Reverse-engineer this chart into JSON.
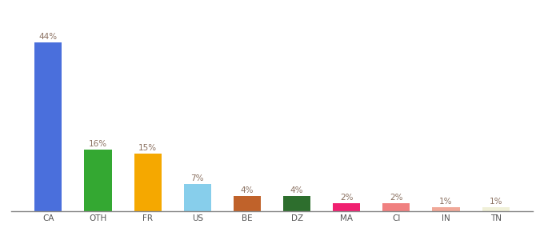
{
  "categories": [
    "CA",
    "OTH",
    "FR",
    "US",
    "BE",
    "DZ",
    "MA",
    "CI",
    "IN",
    "TN"
  ],
  "values": [
    44,
    16,
    15,
    7,
    4,
    4,
    2,
    2,
    1,
    1
  ],
  "bar_colors": [
    "#4a6fdc",
    "#34a832",
    "#f5a800",
    "#87ceeb",
    "#c0622a",
    "#2d6e2d",
    "#f02070",
    "#f08080",
    "#f0a898",
    "#f0f0d8"
  ],
  "label_fontsize": 7.5,
  "tick_fontsize": 7.5,
  "background_color": "#ffffff",
  "ylim": [
    0,
    50
  ],
  "bar_width": 0.55,
  "label_color": "#8a7060"
}
